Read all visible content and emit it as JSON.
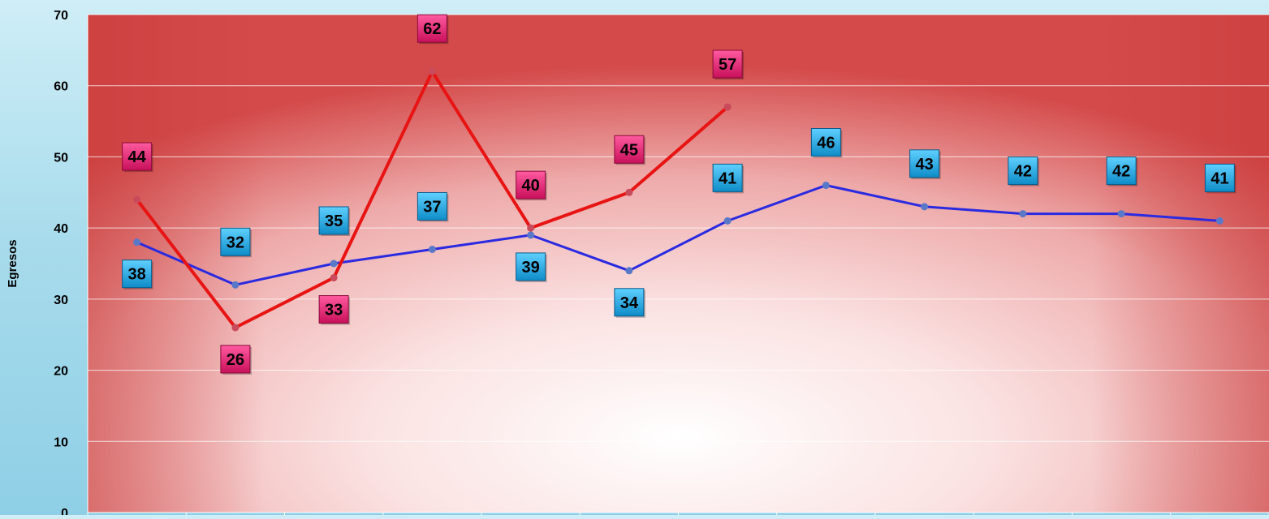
{
  "chart_data": {
    "type": "line",
    "ylabel": "Egresos",
    "ylim": [
      0,
      70
    ],
    "yticks": [
      0,
      10,
      20,
      30,
      40,
      50,
      60,
      70
    ],
    "yticklabels": [
      "0",
      "10",
      "20",
      "30",
      "40",
      "50",
      "60",
      "70"
    ],
    "categories_count": 12,
    "grid": true,
    "legend": "none",
    "series": [
      {
        "color": "#e81414",
        "label_color": "#e0246a",
        "values": [
          44,
          26,
          33,
          62,
          40,
          45,
          57
        ],
        "labels": [
          "44",
          "26",
          "33",
          "62",
          "40",
          "45",
          "57"
        ]
      },
      {
        "color": "#2a2ae0",
        "label_color": "#1aa6dd",
        "values": [
          38,
          32,
          35,
          37,
          39,
          34,
          41,
          46,
          43,
          42,
          42,
          41
        ],
        "labels": [
          "38",
          "32",
          "35",
          "37",
          "39",
          "34",
          "41",
          "46",
          "43",
          "42",
          "42",
          "41"
        ]
      }
    ]
  }
}
